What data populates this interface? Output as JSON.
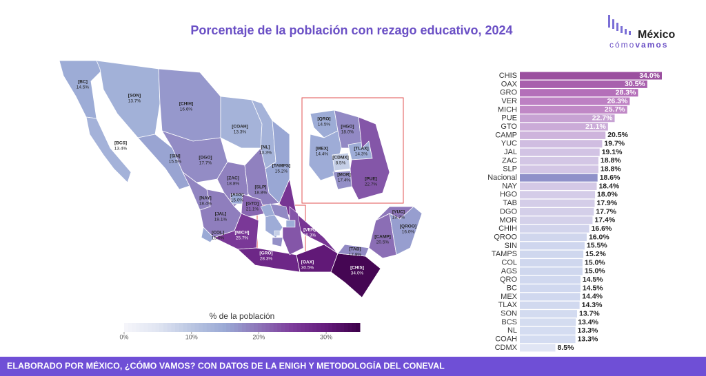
{
  "title": "Porcentaje de la población con rezago educativo, 2024",
  "logo": {
    "name": "México",
    "tagline_a": "cómo",
    "tagline_b": "vamos"
  },
  "footer": "ELABORADO POR MÉXICO, ¿CÓMO VAMOS? CON DATOS DE LA ENIGH Y METODOLOGÍA DEL CONEVAL",
  "chart_data": [
    {
      "type": "bar",
      "orientation": "horizontal",
      "categories": [
        "CHIS",
        "OAX",
        "GRO",
        "VER",
        "MICH",
        "PUE",
        "GTO",
        "CAMP",
        "YUC",
        "JAL",
        "ZAC",
        "SLP",
        "Nacional",
        "NAY",
        "HGO",
        "TAB",
        "DGO",
        "MOR",
        "CHIH",
        "QROO",
        "SIN",
        "TAMPS",
        "COL",
        "AGS",
        "QRO",
        "BC",
        "MEX",
        "TLAX",
        "SON",
        "BCS",
        "NL",
        "COAH",
        "CDMX"
      ],
      "values": [
        34.0,
        30.5,
        28.3,
        26.3,
        25.7,
        22.7,
        21.1,
        20.5,
        19.7,
        19.1,
        18.8,
        18.8,
        18.6,
        18.4,
        18.0,
        17.9,
        17.7,
        17.4,
        16.6,
        16.0,
        15.5,
        15.2,
        15.0,
        15.0,
        14.5,
        14.5,
        14.4,
        14.3,
        13.7,
        13.4,
        13.3,
        13.3,
        8.5
      ],
      "value_labels": [
        "34.0%",
        "30.5%",
        "28.3%",
        "26.3%",
        "25.7%",
        "22.7%",
        "21.1%",
        "20.5%",
        "19.7%",
        "19.1%",
        "18.8%",
        "18.8%",
        "18.6%",
        "18.4%",
        "18.0%",
        "17.9%",
        "17.7%",
        "17.4%",
        "16.6%",
        "16.0%",
        "15.5%",
        "15.2%",
        "15.0%",
        "15.0%",
        "14.5%",
        "14.5%",
        "14.4%",
        "14.3%",
        "13.7%",
        "13.4%",
        "13.3%",
        "13.3%",
        "8.5%"
      ],
      "colors": [
        "#9b509f",
        "#a860ad",
        "#b46fb9",
        "#bd80c3",
        "#c088c6",
        "#c7a2d3",
        "#cbabd8",
        "#ceb4dc",
        "#d0bde1",
        "#d2c3e4",
        "#d3c6e5",
        "#d3c6e5",
        "#8f91c9",
        "#d4c9e6",
        "#d4cce8",
        "#d4cde8",
        "#d4cfe9",
        "#d4d1ea",
        "#d2d4ec",
        "#d0d6ed",
        "#cfd6ee",
        "#cfd7ee",
        "#cfd7ee",
        "#cfd7ee",
        "#d0d8ef",
        "#d0d8ef",
        "#d0d8ef",
        "#d1d9ef",
        "#d3dbf0",
        "#d4dcf0",
        "#d4dcf1",
        "#d4dcf1",
        "#e0e5f4"
      ],
      "xlim": [
        0,
        34
      ]
    },
    {
      "type": "choropleth",
      "categories": [
        "[BC]",
        "[SON]",
        "[CHIH]",
        "[COAH]",
        "[BCS]",
        "[SIN]",
        "[DGO]",
        "[NL]",
        "[TAMPS]",
        "[ZAC]",
        "[SLP]",
        "[NAY]",
        "[AGS]",
        "[GTO]",
        "[JAL]",
        "[COL]",
        "[MICH]",
        "[VER]",
        "[GRO]",
        "[OAX]",
        "[CHIS]",
        "[TAB]",
        "[CAMP]",
        "[YUC]",
        "[QROO]",
        "[QRO]",
        "[HGO]",
        "[MEX]",
        "[CDMX]",
        "[TLAX]",
        "[MOR]",
        "[PUE]"
      ],
      "values": [
        14.5,
        13.7,
        16.6,
        13.3,
        13.4,
        15.5,
        17.7,
        13.3,
        15.2,
        18.8,
        18.8,
        18.4,
        15.0,
        21.1,
        19.1,
        15.0,
        25.7,
        26.3,
        28.3,
        30.5,
        34.0,
        17.9,
        20.5,
        19.7,
        16.0,
        14.5,
        18.0,
        14.4,
        8.5,
        14.3,
        17.4,
        22.7
      ],
      "value_labels": [
        "14.5%",
        "13.7%",
        "16.6%",
        "13.3%",
        "13.4%",
        "15.5%",
        "17.7%",
        "13.3%",
        "15.2%",
        "18.8%",
        "18.8%",
        "18.4%",
        "15.0%",
        "21.1%",
        "19.1%",
        "15.0%",
        "25.7%",
        "26.3%",
        "28.3%",
        "30.5%",
        "34.0%",
        "17.9%",
        "20.5%",
        "19.7%",
        "16.0%",
        "14.5%",
        "18.0%",
        "14.4%",
        "8.5%",
        "14.3%",
        "17.4%",
        "22.7%"
      ],
      "colorbar_title": "% de la población",
      "colorscale": [
        [
          0,
          "#f6f6fb"
        ],
        [
          5,
          "#e0e5f2"
        ],
        [
          10,
          "#bac6e2"
        ],
        [
          15,
          "#9aa9d5"
        ],
        [
          20,
          "#8d74b8"
        ],
        [
          25,
          "#7d3c9b"
        ],
        [
          30,
          "#651c7c"
        ],
        [
          35,
          "#3d0049"
        ]
      ],
      "clim": [
        0,
        35
      ],
      "cticks": [
        {
          "value": 0,
          "label": "0%"
        },
        {
          "value": 10,
          "label": "10%"
        },
        {
          "value": 20,
          "label": "20%"
        },
        {
          "value": 30,
          "label": "30%"
        }
      ]
    }
  ]
}
